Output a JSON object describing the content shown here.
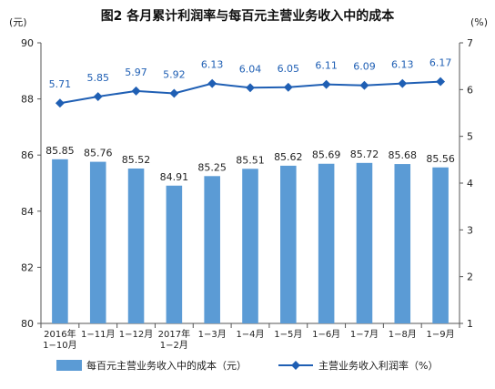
{
  "chart_data": {
    "type": "bar",
    "title": "图2  各月累计利润率与每百元主营业务收入中的成本",
    "left_unit": "(元)",
    "right_unit": "(%)",
    "categories": [
      [
        "2016年",
        "1−10月"
      ],
      [
        "1−11月"
      ],
      [
        "1−12月"
      ],
      [
        "2017年",
        "1−2月"
      ],
      [
        "1−3月"
      ],
      [
        "1−4月"
      ],
      [
        "1−5月"
      ],
      [
        "1−6月"
      ],
      [
        "1−7月"
      ],
      [
        "1−8月"
      ],
      [
        "1−9月"
      ]
    ],
    "y_left": {
      "min": 80,
      "max": 90,
      "ticks": [
        "80",
        "82",
        "84",
        "86",
        "88",
        "90"
      ]
    },
    "y_right": {
      "min": 1,
      "max": 7,
      "ticks": [
        "1",
        "2",
        "3",
        "4",
        "5",
        "6",
        "7"
      ]
    },
    "grid": false,
    "legend_position": "bottom",
    "series": [
      {
        "name": "每百元主营业务收入中的成本（元）",
        "type": "bar",
        "axis": "left",
        "color": "#5b9bd5",
        "values": [
          85.85,
          85.76,
          85.52,
          84.91,
          85.25,
          85.51,
          85.62,
          85.69,
          85.72,
          85.68,
          85.56
        ],
        "labels": [
          "85.85",
          "85.76",
          "85.52",
          "84.91",
          "85.25",
          "85.51",
          "85.62",
          "85.69",
          "85.72",
          "85.68",
          "85.56"
        ]
      },
      {
        "name": "主营业务收入利润率（%）",
        "type": "line",
        "axis": "right",
        "color": "#1f5fb4",
        "values": [
          5.71,
          5.85,
          5.97,
          5.92,
          6.13,
          6.04,
          6.05,
          6.11,
          6.09,
          6.13,
          6.17
        ],
        "labels": [
          "5.71",
          "5.85",
          "5.97",
          "5.92",
          "6.13",
          "6.04",
          "6.05",
          "6.11",
          "6.09",
          "6.13",
          "6.17"
        ]
      }
    ]
  }
}
